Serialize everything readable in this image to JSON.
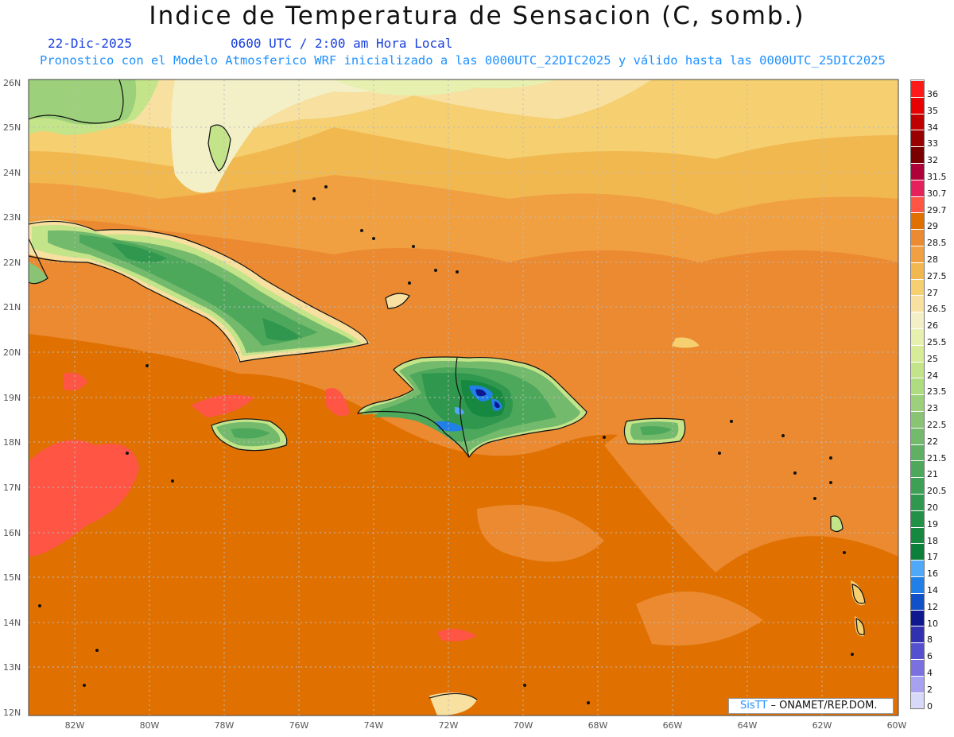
{
  "title": "Indice de Temperatura de Sensacion (C, somb.)",
  "date": "22-Dic-2025",
  "time": "0600 UTC / 2:00 am Hora Local",
  "model_line": "Pronostico con el Modelo Atmosferico WRF inicializado a las 0000UTC_22DIC2025 y válido hasta las  0000UTC_25DIC2025",
  "credit": {
    "logo": "SisTT",
    "text": "– ONAMET/REP.DOM."
  },
  "lat_labels": [
    "26N",
    "25N",
    "24N",
    "23N",
    "22N",
    "21N",
    "20N",
    "19N",
    "18N",
    "17N",
    "16N",
    "15N",
    "14N",
    "13N",
    "12N"
  ],
  "lon_labels": [
    "82W",
    "80W",
    "78W",
    "76W",
    "74W",
    "72W",
    "70W",
    "68W",
    "66W",
    "64W",
    "62W",
    "60W"
  ],
  "colorbar": [
    {
      "label": "36",
      "color": "#ff1a1a"
    },
    {
      "label": "35",
      "color": "#e60000"
    },
    {
      "label": "34",
      "color": "#c00000"
    },
    {
      "label": "33",
      "color": "#990000"
    },
    {
      "label": "32",
      "color": "#7a0000"
    },
    {
      "label": "31.5",
      "color": "#b0003a"
    },
    {
      "label": "30.7",
      "color": "#e6205a"
    },
    {
      "label": "29.7",
      "color": "#ff5545"
    },
    {
      "label": "29",
      "color": "#e07000"
    },
    {
      "label": "28.5",
      "color": "#eb8a30"
    },
    {
      "label": "28",
      "color": "#f0a040"
    },
    {
      "label": "27.5",
      "color": "#f2b850"
    },
    {
      "label": "27",
      "color": "#f5cf70"
    },
    {
      "label": "26.5",
      "color": "#f7e0a0"
    },
    {
      "label": "26",
      "color": "#f3f0c8"
    },
    {
      "label": "25.5",
      "color": "#e8f0b0"
    },
    {
      "label": "25",
      "color": "#d8ec98"
    },
    {
      "label": "24",
      "color": "#c4e48a"
    },
    {
      "label": "23.5",
      "color": "#b0dc80"
    },
    {
      "label": "23",
      "color": "#9cd07a"
    },
    {
      "label": "22.5",
      "color": "#88c474"
    },
    {
      "label": "22",
      "color": "#74ba6c"
    },
    {
      "label": "21.5",
      "color": "#60b064"
    },
    {
      "label": "21",
      "color": "#4ea85c"
    },
    {
      "label": "20.5",
      "color": "#3ea054"
    },
    {
      "label": "20",
      "color": "#30984e"
    },
    {
      "label": "19",
      "color": "#229046"
    },
    {
      "label": "18",
      "color": "#168840"
    },
    {
      "label": "17",
      "color": "#0c803a"
    },
    {
      "label": "16",
      "color": "#50a8f8"
    },
    {
      "label": "14",
      "color": "#2080e8"
    },
    {
      "label": "12",
      "color": "#1050c8"
    },
    {
      "label": "10",
      "color": "#101890"
    },
    {
      "label": "8",
      "color": "#3030b0"
    },
    {
      "label": "6",
      "color": "#5550d0"
    },
    {
      "label": "4",
      "color": "#7a70e0"
    },
    {
      "label": "2",
      "color": "#a8a0f0"
    },
    {
      "label": "0",
      "color": "#d8d8f8"
    }
  ]
}
